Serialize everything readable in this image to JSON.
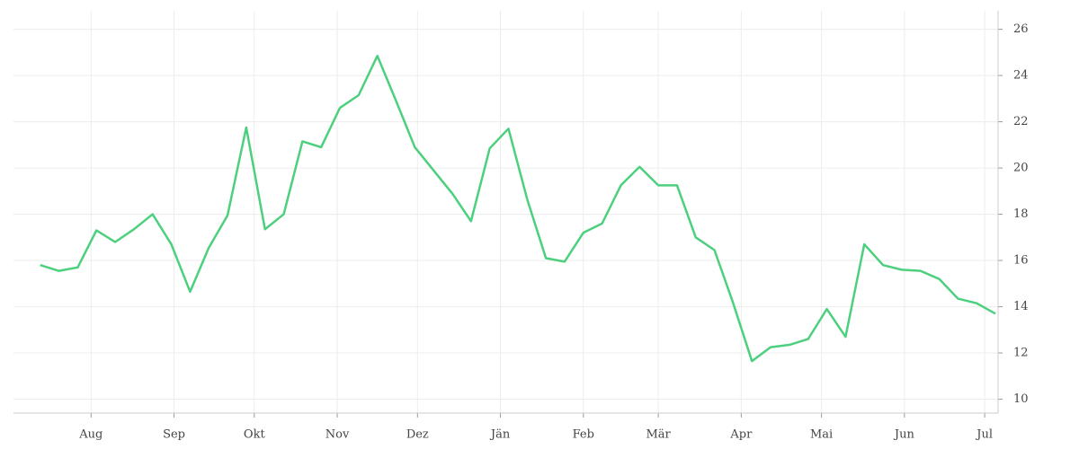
{
  "chart_data": {
    "type": "line",
    "x": [
      -19,
      -12,
      -5,
      2,
      9,
      16,
      23,
      30,
      37,
      44,
      51,
      58,
      65,
      72,
      79,
      86,
      93,
      100,
      107,
      114,
      121,
      128,
      135,
      142,
      149,
      156,
      163,
      170,
      177,
      184,
      191,
      198,
      205,
      212,
      219,
      226,
      233,
      240,
      247,
      254,
      261,
      268,
      275,
      282,
      289,
      296,
      303,
      310,
      317,
      324,
      331,
      338
    ],
    "series": [
      {
        "color": "#4cd07d",
        "values": [
          15.8,
          15.55,
          15.7,
          17.3,
          16.8,
          17.35,
          18.0,
          16.7,
          14.65,
          16.55,
          17.95,
          21.75,
          17.35,
          18.0,
          21.15,
          20.9,
          22.6,
          23.15,
          24.85,
          22.9,
          20.9,
          19.9,
          18.9,
          17.7,
          20.85,
          21.7,
          18.65,
          16.1,
          15.95,
          17.2,
          17.6,
          19.25,
          20.05,
          19.25,
          19.25,
          17.0,
          16.45,
          14.15,
          11.65,
          12.25,
          12.35,
          12.6,
          13.9,
          12.7,
          16.7,
          15.8,
          15.6,
          15.55,
          15.2,
          14.35,
          14.15,
          13.7
        ]
      }
    ],
    "xlim": [
      -29,
      339
    ],
    "xticks": [
      {
        "value": 0,
        "label": "Aug"
      },
      {
        "value": 31,
        "label": "Sep"
      },
      {
        "value": 61,
        "label": "Okt"
      },
      {
        "value": 92,
        "label": "Nov"
      },
      {
        "value": 122,
        "label": "Dez"
      },
      {
        "value": 153,
        "label": "Jän"
      },
      {
        "value": 184,
        "label": "Feb"
      },
      {
        "value": 212,
        "label": "Mär"
      },
      {
        "value": 243,
        "label": "Apr"
      },
      {
        "value": 273,
        "label": "Mai"
      },
      {
        "value": 304,
        "label": "Jun"
      },
      {
        "value": 334,
        "label": "Jul"
      }
    ],
    "ylim": [
      9.4,
      26.8
    ],
    "yticks": [
      10,
      12,
      14,
      16,
      18,
      20,
      22,
      24,
      26
    ],
    "grid": true
  }
}
